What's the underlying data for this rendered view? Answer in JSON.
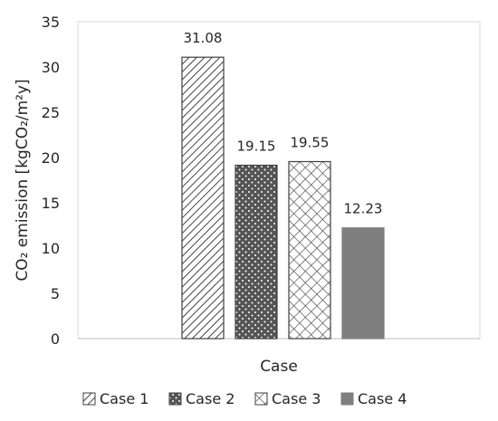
{
  "chart_data": {
    "type": "bar",
    "xlabel": "Case",
    "ylabel": "CO₂ emission [kgCO₂/m²y]",
    "ylim": [
      0,
      35
    ],
    "yticks": [
      0,
      5,
      10,
      15,
      20,
      25,
      30,
      35
    ],
    "grid": false,
    "legend": "bottom",
    "series": [
      {
        "name": "Case 1",
        "value": 31.08,
        "label": "31.08",
        "pattern": "diagonal-hatch",
        "color": "#444444"
      },
      {
        "name": "Case 2",
        "value": 19.15,
        "label": "19.15",
        "pattern": "dots",
        "color": "#555555"
      },
      {
        "name": "Case 3",
        "value": 19.55,
        "label": "19.55",
        "pattern": "crosshatch",
        "color": "#444444"
      },
      {
        "name": "Case 4",
        "value": 12.23,
        "label": "12.23",
        "pattern": "solid",
        "color": "#7f7f7f"
      }
    ]
  }
}
